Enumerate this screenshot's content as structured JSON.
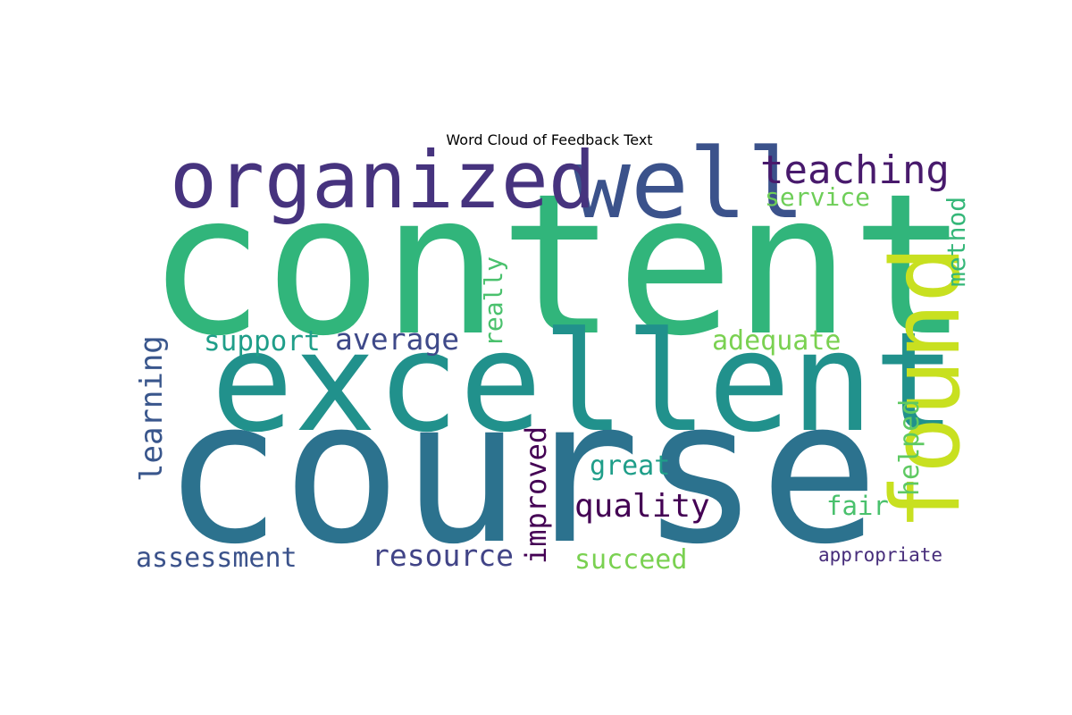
{
  "chart_data": {
    "type": "wordcloud",
    "title": "Word Cloud of Feedback Text",
    "words": [
      {
        "text": "content",
        "weight": 1.0,
        "color": "#31b57b",
        "orientation": "horizontal"
      },
      {
        "text": "course",
        "weight": 1.0,
        "color": "#2c728e",
        "orientation": "horizontal"
      },
      {
        "text": "excellent",
        "weight": 0.72,
        "color": "#21918c",
        "orientation": "horizontal"
      },
      {
        "text": "well",
        "weight": 0.53,
        "color": "#3b528b",
        "orientation": "horizontal"
      },
      {
        "text": "organized",
        "weight": 0.5,
        "color": "#46337e",
        "orientation": "horizontal"
      },
      {
        "text": "found",
        "weight": 0.52,
        "color": "#c8e020",
        "orientation": "vertical"
      },
      {
        "text": "teaching",
        "weight": 0.27,
        "color": "#481a6c",
        "orientation": "horizontal"
      },
      {
        "text": "quality",
        "weight": 0.21,
        "color": "#440154",
        "orientation": "horizontal"
      },
      {
        "text": "average",
        "weight": 0.2,
        "color": "#3e4989",
        "orientation": "horizontal"
      },
      {
        "text": "learning",
        "weight": 0.2,
        "color": "#39568c",
        "orientation": "vertical"
      },
      {
        "text": "resource",
        "weight": 0.2,
        "color": "#414487",
        "orientation": "horizontal"
      },
      {
        "text": "improved",
        "weight": 0.2,
        "color": "#440154",
        "orientation": "vertical"
      },
      {
        "text": "helped",
        "weight": 0.19,
        "color": "#5ec962",
        "orientation": "vertical"
      },
      {
        "text": "support",
        "weight": 0.18,
        "color": "#1f9e89",
        "orientation": "horizontal"
      },
      {
        "text": "great",
        "weight": 0.18,
        "color": "#1f9e89",
        "orientation": "horizontal"
      },
      {
        "text": "assessment",
        "weight": 0.18,
        "color": "#3b528b",
        "orientation": "horizontal"
      },
      {
        "text": "succeed",
        "weight": 0.18,
        "color": "#7ad151",
        "orientation": "horizontal"
      },
      {
        "text": "adequate",
        "weight": 0.17,
        "color": "#7ad151",
        "orientation": "horizontal"
      },
      {
        "text": "method",
        "weight": 0.17,
        "color": "#35b779",
        "orientation": "vertical"
      },
      {
        "text": "fair",
        "weight": 0.17,
        "color": "#4ac16d",
        "orientation": "horizontal"
      },
      {
        "text": "really",
        "weight": 0.16,
        "color": "#4ac16d",
        "orientation": "vertical"
      },
      {
        "text": "service",
        "weight": 0.16,
        "color": "#6ece58",
        "orientation": "horizontal"
      },
      {
        "text": "appropriate",
        "weight": 0.13,
        "color": "#472d7b",
        "orientation": "horizontal"
      }
    ]
  }
}
